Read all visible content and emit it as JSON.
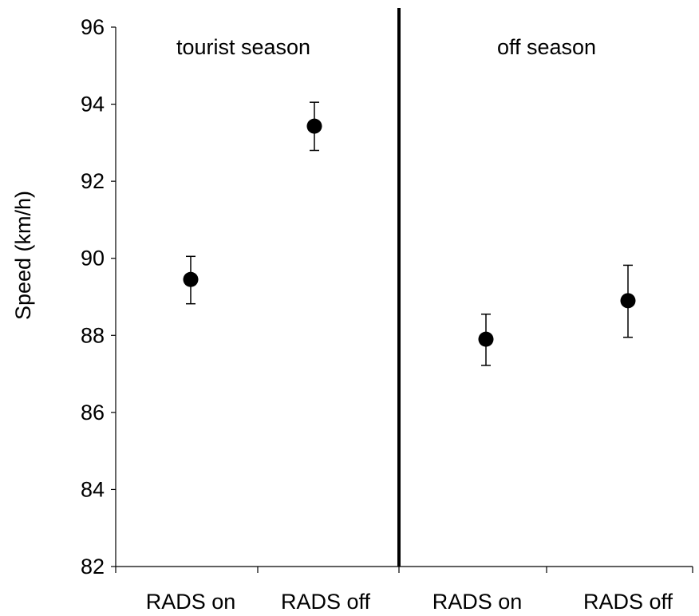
{
  "chart_data": {
    "type": "scatter",
    "title": "",
    "xlabel": "",
    "ylabel": "Speed (km/h)",
    "ylim": [
      82,
      96
    ],
    "yticks": [
      82,
      84,
      86,
      88,
      90,
      92,
      94,
      96
    ],
    "grid": false,
    "legend": "none",
    "groups": [
      {
        "label": "tourist season",
        "categories": [
          "RADS on",
          "RADS off"
        ],
        "values": [
          89.45,
          93.43
        ],
        "error_low": [
          88.82,
          92.8
        ],
        "error_high": [
          90.05,
          94.05
        ]
      },
      {
        "label": "off season",
        "categories": [
          "RADS on",
          "RADS off"
        ],
        "values": [
          87.9,
          88.9
        ],
        "error_low": [
          87.22,
          87.95
        ],
        "error_high": [
          88.55,
          89.82
        ]
      }
    ],
    "colors": {
      "marker": "#000000",
      "axis": "#000000",
      "divider": "#000000"
    }
  }
}
